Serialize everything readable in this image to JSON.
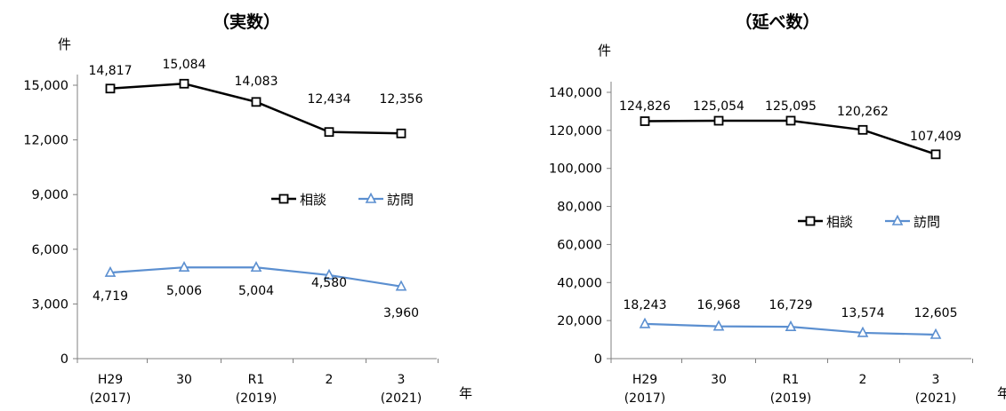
{
  "chart_data": [
    {
      "type": "line",
      "title": "（実数）",
      "y_unit": "件",
      "x_unit": "年",
      "categories": [
        {
          "line1": "H29",
          "line2": "(2017)"
        },
        {
          "line1": "30",
          "line2": ""
        },
        {
          "line1": "R1",
          "line2": "(2019)"
        },
        {
          "line1": "2",
          "line2": ""
        },
        {
          "line1": "3",
          "line2": "(2021)"
        }
      ],
      "ylim": [
        0,
        15000
      ],
      "yticks": [
        0,
        3000,
        6000,
        9000,
        12000,
        15000
      ],
      "ytick_labels": [
        "0",
        "3,000",
        "6,000",
        "9,000",
        "12,000",
        "15,000"
      ],
      "legend_position": "right-middle",
      "series": [
        {
          "name": "相談",
          "marker": "square",
          "color": "#000000",
          "values": [
            14817,
            15084,
            14083,
            12434,
            12356
          ],
          "labels": [
            "14,817",
            "15,084",
            "14,083",
            "12,434",
            "12,356"
          ]
        },
        {
          "name": "訪問",
          "marker": "triangle",
          "color": "#5b8fd0",
          "values": [
            4719,
            5006,
            5004,
            4580,
            3960
          ],
          "labels": [
            "4,719",
            "5,006",
            "5,004",
            "4,580",
            "3,960"
          ]
        }
      ]
    },
    {
      "type": "line",
      "title": "（延べ数）",
      "y_unit": "件",
      "x_unit": "年",
      "categories": [
        {
          "line1": "H29",
          "line2": "(2017)"
        },
        {
          "line1": "30",
          "line2": ""
        },
        {
          "line1": "R1",
          "line2": "(2019)"
        },
        {
          "line1": "2",
          "line2": ""
        },
        {
          "line1": "3",
          "line2": "(2021)"
        }
      ],
      "ylim": [
        0,
        140000
      ],
      "yticks": [
        0,
        20000,
        40000,
        60000,
        80000,
        100000,
        120000,
        140000
      ],
      "ytick_labels": [
        "0",
        "20,000",
        "40,000",
        "60,000",
        "80,000",
        "100,000",
        "120,000",
        "140,000"
      ],
      "legend_position": "right-middle",
      "series": [
        {
          "name": "相談",
          "marker": "square",
          "color": "#000000",
          "values": [
            124826,
            125054,
            125095,
            120262,
            107409
          ],
          "labels": [
            "124,826",
            "125,054",
            "125,095",
            "120,262",
            "107,409"
          ]
        },
        {
          "name": "訪問",
          "marker": "triangle",
          "color": "#5b8fd0",
          "values": [
            18243,
            16968,
            16729,
            13574,
            12605
          ],
          "labels": [
            "18,243",
            "16,968",
            "16,729",
            "13,574",
            "12,605"
          ]
        }
      ]
    }
  ]
}
